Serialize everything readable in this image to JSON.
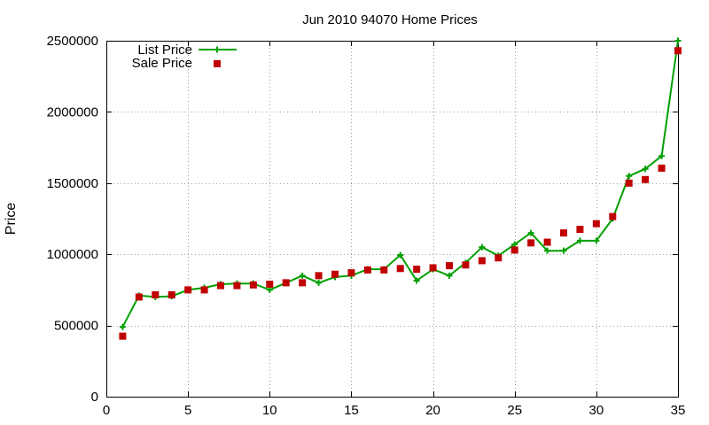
{
  "chart_data": {
    "type": "line",
    "title": "Jun 2010 94070 Home Prices",
    "ylabel": "Price",
    "xlabel": "",
    "xlim": [
      0,
      35
    ],
    "ylim": [
      0,
      2500000
    ],
    "xticks": [
      "0",
      "5",
      "10",
      "15",
      "20",
      "25",
      "30",
      "35"
    ],
    "yticks": [
      "0",
      "500000",
      "1000000",
      "1500000",
      "2000000",
      "2500000"
    ],
    "grid": true,
    "legend_position": "top-left",
    "series": [
      {
        "name": "List Price",
        "style": "line+cross",
        "color": "#00a000",
        "x": [
          1,
          2,
          3,
          4,
          5,
          6,
          7,
          8,
          9,
          10,
          11,
          12,
          13,
          14,
          15,
          16,
          17,
          18,
          19,
          20,
          21,
          22,
          23,
          24,
          25,
          26,
          27,
          28,
          29,
          30,
          31,
          32,
          33,
          34,
          35
        ],
        "y": [
          490000,
          710000,
          700000,
          705000,
          750000,
          765000,
          790000,
          795000,
          795000,
          750000,
          800000,
          850000,
          800000,
          840000,
          850000,
          895000,
          895000,
          995000,
          815000,
          895000,
          850000,
          940000,
          1050000,
          990000,
          1070000,
          1150000,
          1025000,
          1025000,
          1095000,
          1095000,
          1250000,
          1550000,
          1600000,
          1690000,
          2500000
        ]
      },
      {
        "name": "Sale Price",
        "style": "square",
        "color": "#c00000",
        "x": [
          1,
          2,
          3,
          4,
          5,
          6,
          7,
          8,
          9,
          10,
          11,
          12,
          13,
          14,
          15,
          16,
          17,
          18,
          19,
          20,
          21,
          22,
          23,
          24,
          25,
          26,
          27,
          28,
          29,
          30,
          31,
          32,
          33,
          34,
          35
        ],
        "y": [
          425000,
          700000,
          715000,
          715000,
          750000,
          750000,
          780000,
          780000,
          785000,
          790000,
          800000,
          800000,
          850000,
          860000,
          870000,
          890000,
          890000,
          900000,
          895000,
          905000,
          920000,
          925000,
          955000,
          975000,
          1030000,
          1080000,
          1085000,
          1150000,
          1175000,
          1215000,
          1265000,
          1500000,
          1525000,
          1605000,
          2430000
        ]
      }
    ]
  }
}
